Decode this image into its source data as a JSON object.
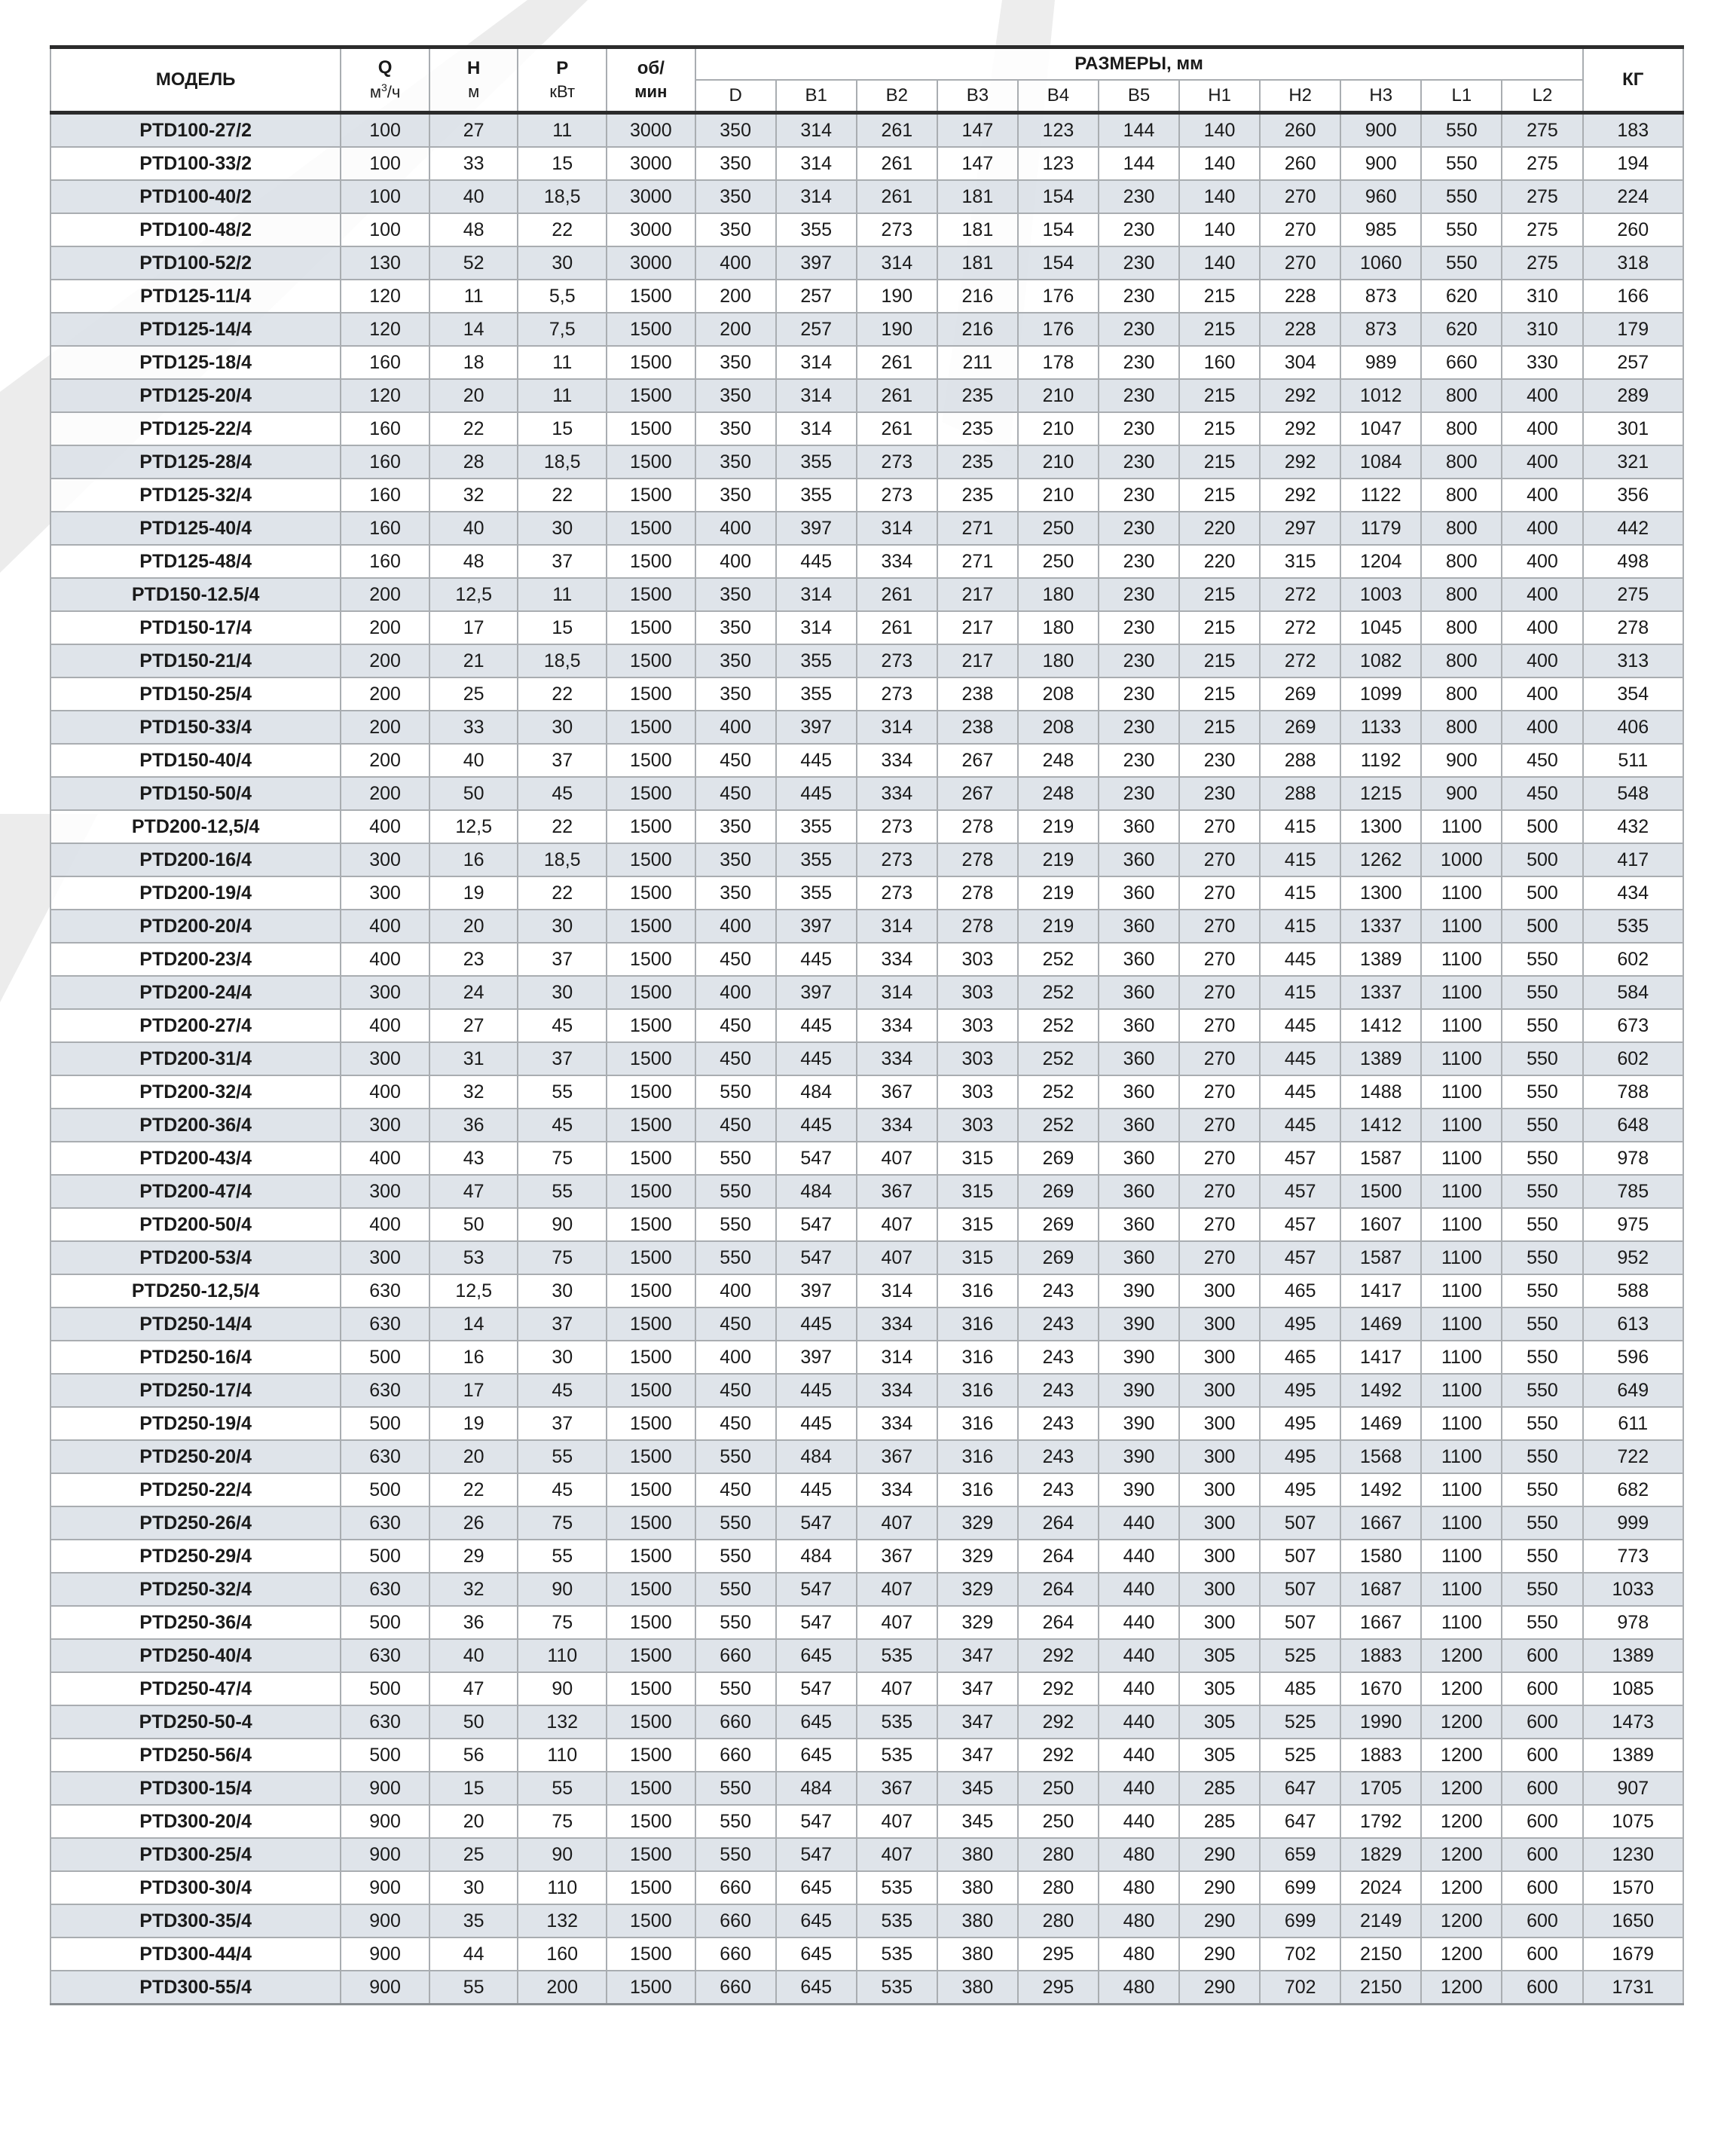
{
  "header": {
    "model": "МОДЕЛЬ",
    "q": "Q",
    "q_unit_base": "м",
    "q_unit_exp": "3",
    "q_unit_tail": "/ч",
    "h": "H",
    "h_unit": "м",
    "p": "P",
    "p_unit": "кВт",
    "rpm_top": "об/",
    "rpm_bottom": "мин",
    "dimensions": "РАЗМЕРЫ, мм",
    "dim_cols": [
      "D",
      "B1",
      "B2",
      "B3",
      "B4",
      "B5",
      "H1",
      "H2",
      "H3",
      "L1",
      "L2"
    ],
    "kg": "КГ"
  },
  "colors": {
    "row_shaded": "#dce2e8",
    "border": "#a9adb1",
    "rule": "#2b2b2b",
    "watermark": "#e9e9e9"
  },
  "rows": [
    [
      "PTD100-27/2",
      "100",
      "27",
      "11",
      "3000",
      "350",
      "314",
      "261",
      "147",
      "123",
      "144",
      "140",
      "260",
      "900",
      "550",
      "275",
      "183"
    ],
    [
      "PTD100-33/2",
      "100",
      "33",
      "15",
      "3000",
      "350",
      "314",
      "261",
      "147",
      "123",
      "144",
      "140",
      "260",
      "900",
      "550",
      "275",
      "194"
    ],
    [
      "PTD100-40/2",
      "100",
      "40",
      "18,5",
      "3000",
      "350",
      "314",
      "261",
      "181",
      "154",
      "230",
      "140",
      "270",
      "960",
      "550",
      "275",
      "224"
    ],
    [
      "PTD100-48/2",
      "100",
      "48",
      "22",
      "3000",
      "350",
      "355",
      "273",
      "181",
      "154",
      "230",
      "140",
      "270",
      "985",
      "550",
      "275",
      "260"
    ],
    [
      "PTD100-52/2",
      "130",
      "52",
      "30",
      "3000",
      "400",
      "397",
      "314",
      "181",
      "154",
      "230",
      "140",
      "270",
      "1060",
      "550",
      "275",
      "318"
    ],
    [
      "PTD125-11/4",
      "120",
      "11",
      "5,5",
      "1500",
      "200",
      "257",
      "190",
      "216",
      "176",
      "230",
      "215",
      "228",
      "873",
      "620",
      "310",
      "166"
    ],
    [
      "PTD125-14/4",
      "120",
      "14",
      "7,5",
      "1500",
      "200",
      "257",
      "190",
      "216",
      "176",
      "230",
      "215",
      "228",
      "873",
      "620",
      "310",
      "179"
    ],
    [
      "PTD125-18/4",
      "160",
      "18",
      "11",
      "1500",
      "350",
      "314",
      "261",
      "211",
      "178",
      "230",
      "160",
      "304",
      "989",
      "660",
      "330",
      "257"
    ],
    [
      "PTD125-20/4",
      "120",
      "20",
      "11",
      "1500",
      "350",
      "314",
      "261",
      "235",
      "210",
      "230",
      "215",
      "292",
      "1012",
      "800",
      "400",
      "289"
    ],
    [
      "PTD125-22/4",
      "160",
      "22",
      "15",
      "1500",
      "350",
      "314",
      "261",
      "235",
      "210",
      "230",
      "215",
      "292",
      "1047",
      "800",
      "400",
      "301"
    ],
    [
      "PTD125-28/4",
      "160",
      "28",
      "18,5",
      "1500",
      "350",
      "355",
      "273",
      "235",
      "210",
      "230",
      "215",
      "292",
      "1084",
      "800",
      "400",
      "321"
    ],
    [
      "PTD125-32/4",
      "160",
      "32",
      "22",
      "1500",
      "350",
      "355",
      "273",
      "235",
      "210",
      "230",
      "215",
      "292",
      "1122",
      "800",
      "400",
      "356"
    ],
    [
      "PTD125-40/4",
      "160",
      "40",
      "30",
      "1500",
      "400",
      "397",
      "314",
      "271",
      "250",
      "230",
      "220",
      "297",
      "1179",
      "800",
      "400",
      "442"
    ],
    [
      "PTD125-48/4",
      "160",
      "48",
      "37",
      "1500",
      "400",
      "445",
      "334",
      "271",
      "250",
      "230",
      "220",
      "315",
      "1204",
      "800",
      "400",
      "498"
    ],
    [
      "PTD150-12.5/4",
      "200",
      "12,5",
      "11",
      "1500",
      "350",
      "314",
      "261",
      "217",
      "180",
      "230",
      "215",
      "272",
      "1003",
      "800",
      "400",
      "275"
    ],
    [
      "PTD150-17/4",
      "200",
      "17",
      "15",
      "1500",
      "350",
      "314",
      "261",
      "217",
      "180",
      "230",
      "215",
      "272",
      "1045",
      "800",
      "400",
      "278"
    ],
    [
      "PTD150-21/4",
      "200",
      "21",
      "18,5",
      "1500",
      "350",
      "355",
      "273",
      "217",
      "180",
      "230",
      "215",
      "272",
      "1082",
      "800",
      "400",
      "313"
    ],
    [
      "PTD150-25/4",
      "200",
      "25",
      "22",
      "1500",
      "350",
      "355",
      "273",
      "238",
      "208",
      "230",
      "215",
      "269",
      "1099",
      "800",
      "400",
      "354"
    ],
    [
      "PTD150-33/4",
      "200",
      "33",
      "30",
      "1500",
      "400",
      "397",
      "314",
      "238",
      "208",
      "230",
      "215",
      "269",
      "1133",
      "800",
      "400",
      "406"
    ],
    [
      "PTD150-40/4",
      "200",
      "40",
      "37",
      "1500",
      "450",
      "445",
      "334",
      "267",
      "248",
      "230",
      "230",
      "288",
      "1192",
      "900",
      "450",
      "511"
    ],
    [
      "PTD150-50/4",
      "200",
      "50",
      "45",
      "1500",
      "450",
      "445",
      "334",
      "267",
      "248",
      "230",
      "230",
      "288",
      "1215",
      "900",
      "450",
      "548"
    ],
    [
      "PTD200-12,5/4",
      "400",
      "12,5",
      "22",
      "1500",
      "350",
      "355",
      "273",
      "278",
      "219",
      "360",
      "270",
      "415",
      "1300",
      "1100",
      "500",
      "432"
    ],
    [
      "PTD200-16/4",
      "300",
      "16",
      "18,5",
      "1500",
      "350",
      "355",
      "273",
      "278",
      "219",
      "360",
      "270",
      "415",
      "1262",
      "1000",
      "500",
      "417"
    ],
    [
      "PTD200-19/4",
      "300",
      "19",
      "22",
      "1500",
      "350",
      "355",
      "273",
      "278",
      "219",
      "360",
      "270",
      "415",
      "1300",
      "1100",
      "500",
      "434"
    ],
    [
      "PTD200-20/4",
      "400",
      "20",
      "30",
      "1500",
      "400",
      "397",
      "314",
      "278",
      "219",
      "360",
      "270",
      "415",
      "1337",
      "1100",
      "500",
      "535"
    ],
    [
      "PTD200-23/4",
      "400",
      "23",
      "37",
      "1500",
      "450",
      "445",
      "334",
      "303",
      "252",
      "360",
      "270",
      "445",
      "1389",
      "1100",
      "550",
      "602"
    ],
    [
      "PTD200-24/4",
      "300",
      "24",
      "30",
      "1500",
      "400",
      "397",
      "314",
      "303",
      "252",
      "360",
      "270",
      "415",
      "1337",
      "1100",
      "550",
      "584"
    ],
    [
      "PTD200-27/4",
      "400",
      "27",
      "45",
      "1500",
      "450",
      "445",
      "334",
      "303",
      "252",
      "360",
      "270",
      "445",
      "1412",
      "1100",
      "550",
      "673"
    ],
    [
      "PTD200-31/4",
      "300",
      "31",
      "37",
      "1500",
      "450",
      "445",
      "334",
      "303",
      "252",
      "360",
      "270",
      "445",
      "1389",
      "1100",
      "550",
      "602"
    ],
    [
      "PTD200-32/4",
      "400",
      "32",
      "55",
      "1500",
      "550",
      "484",
      "367",
      "303",
      "252",
      "360",
      "270",
      "445",
      "1488",
      "1100",
      "550",
      "788"
    ],
    [
      "PTD200-36/4",
      "300",
      "36",
      "45",
      "1500",
      "450",
      "445",
      "334",
      "303",
      "252",
      "360",
      "270",
      "445",
      "1412",
      "1100",
      "550",
      "648"
    ],
    [
      "PTD200-43/4",
      "400",
      "43",
      "75",
      "1500",
      "550",
      "547",
      "407",
      "315",
      "269",
      "360",
      "270",
      "457",
      "1587",
      "1100",
      "550",
      "978"
    ],
    [
      "PTD200-47/4",
      "300",
      "47",
      "55",
      "1500",
      "550",
      "484",
      "367",
      "315",
      "269",
      "360",
      "270",
      "457",
      "1500",
      "1100",
      "550",
      "785"
    ],
    [
      "PTD200-50/4",
      "400",
      "50",
      "90",
      "1500",
      "550",
      "547",
      "407",
      "315",
      "269",
      "360",
      "270",
      "457",
      "1607",
      "1100",
      "550",
      "975"
    ],
    [
      "PTD200-53/4",
      "300",
      "53",
      "75",
      "1500",
      "550",
      "547",
      "407",
      "315",
      "269",
      "360",
      "270",
      "457",
      "1587",
      "1100",
      "550",
      "952"
    ],
    [
      "PTD250-12,5/4",
      "630",
      "12,5",
      "30",
      "1500",
      "400",
      "397",
      "314",
      "316",
      "243",
      "390",
      "300",
      "465",
      "1417",
      "1100",
      "550",
      "588"
    ],
    [
      "PTD250-14/4",
      "630",
      "14",
      "37",
      "1500",
      "450",
      "445",
      "334",
      "316",
      "243",
      "390",
      "300",
      "495",
      "1469",
      "1100",
      "550",
      "613"
    ],
    [
      "PTD250-16/4",
      "500",
      "16",
      "30",
      "1500",
      "400",
      "397",
      "314",
      "316",
      "243",
      "390",
      "300",
      "465",
      "1417",
      "1100",
      "550",
      "596"
    ],
    [
      "PTD250-17/4",
      "630",
      "17",
      "45",
      "1500",
      "450",
      "445",
      "334",
      "316",
      "243",
      "390",
      "300",
      "495",
      "1492",
      "1100",
      "550",
      "649"
    ],
    [
      "PTD250-19/4",
      "500",
      "19",
      "37",
      "1500",
      "450",
      "445",
      "334",
      "316",
      "243",
      "390",
      "300",
      "495",
      "1469",
      "1100",
      "550",
      "611"
    ],
    [
      "PTD250-20/4",
      "630",
      "20",
      "55",
      "1500",
      "550",
      "484",
      "367",
      "316",
      "243",
      "390",
      "300",
      "495",
      "1568",
      "1100",
      "550",
      "722"
    ],
    [
      "PTD250-22/4",
      "500",
      "22",
      "45",
      "1500",
      "450",
      "445",
      "334",
      "316",
      "243",
      "390",
      "300",
      "495",
      "1492",
      "1100",
      "550",
      "682"
    ],
    [
      "PTD250-26/4",
      "630",
      "26",
      "75",
      "1500",
      "550",
      "547",
      "407",
      "329",
      "264",
      "440",
      "300",
      "507",
      "1667",
      "1100",
      "550",
      "999"
    ],
    [
      "PTD250-29/4",
      "500",
      "29",
      "55",
      "1500",
      "550",
      "484",
      "367",
      "329",
      "264",
      "440",
      "300",
      "507",
      "1580",
      "1100",
      "550",
      "773"
    ],
    [
      "PTD250-32/4",
      "630",
      "32",
      "90",
      "1500",
      "550",
      "547",
      "407",
      "329",
      "264",
      "440",
      "300",
      "507",
      "1687",
      "1100",
      "550",
      "1033"
    ],
    [
      "PTD250-36/4",
      "500",
      "36",
      "75",
      "1500",
      "550",
      "547",
      "407",
      "329",
      "264",
      "440",
      "300",
      "507",
      "1667",
      "1100",
      "550",
      "978"
    ],
    [
      "PTD250-40/4",
      "630",
      "40",
      "110",
      "1500",
      "660",
      "645",
      "535",
      "347",
      "292",
      "440",
      "305",
      "525",
      "1883",
      "1200",
      "600",
      "1389"
    ],
    [
      "PTD250-47/4",
      "500",
      "47",
      "90",
      "1500",
      "550",
      "547",
      "407",
      "347",
      "292",
      "440",
      "305",
      "485",
      "1670",
      "1200",
      "600",
      "1085"
    ],
    [
      "PTD250-50-4",
      "630",
      "50",
      "132",
      "1500",
      "660",
      "645",
      "535",
      "347",
      "292",
      "440",
      "305",
      "525",
      "1990",
      "1200",
      "600",
      "1473"
    ],
    [
      "PTD250-56/4",
      "500",
      "56",
      "110",
      "1500",
      "660",
      "645",
      "535",
      "347",
      "292",
      "440",
      "305",
      "525",
      "1883",
      "1200",
      "600",
      "1389"
    ],
    [
      "PTD300-15/4",
      "900",
      "15",
      "55",
      "1500",
      "550",
      "484",
      "367",
      "345",
      "250",
      "440",
      "285",
      "647",
      "1705",
      "1200",
      "600",
      "907"
    ],
    [
      "PTD300-20/4",
      "900",
      "20",
      "75",
      "1500",
      "550",
      "547",
      "407",
      "345",
      "250",
      "440",
      "285",
      "647",
      "1792",
      "1200",
      "600",
      "1075"
    ],
    [
      "PTD300-25/4",
      "900",
      "25",
      "90",
      "1500",
      "550",
      "547",
      "407",
      "380",
      "280",
      "480",
      "290",
      "659",
      "1829",
      "1200",
      "600",
      "1230"
    ],
    [
      "PTD300-30/4",
      "900",
      "30",
      "110",
      "1500",
      "660",
      "645",
      "535",
      "380",
      "280",
      "480",
      "290",
      "699",
      "2024",
      "1200",
      "600",
      "1570"
    ],
    [
      "PTD300-35/4",
      "900",
      "35",
      "132",
      "1500",
      "660",
      "645",
      "535",
      "380",
      "280",
      "480",
      "290",
      "699",
      "2149",
      "1200",
      "600",
      "1650"
    ],
    [
      "PTD300-44/4",
      "900",
      "44",
      "160",
      "1500",
      "660",
      "645",
      "535",
      "380",
      "295",
      "480",
      "290",
      "702",
      "2150",
      "1200",
      "600",
      "1679"
    ],
    [
      "PTD300-55/4",
      "900",
      "55",
      "200",
      "1500",
      "660",
      "645",
      "535",
      "380",
      "295",
      "480",
      "290",
      "702",
      "2150",
      "1200",
      "600",
      "1731"
    ]
  ]
}
